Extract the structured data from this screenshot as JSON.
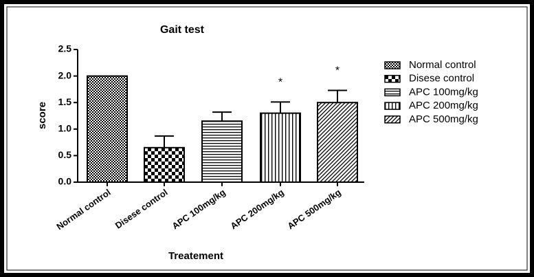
{
  "chart_data": {
    "type": "bar",
    "title": "Gait test",
    "xlabel": "Treatement",
    "ylabel": "score",
    "categories": [
      "Normal control",
      "Disese control",
      "APC 100mg/kg",
      "APC 200mg/kg",
      "APC 500mg/kg"
    ],
    "values": [
      2.0,
      0.65,
      1.15,
      1.3,
      1.5
    ],
    "errors": [
      0,
      0.22,
      0.17,
      0.21,
      0.23
    ],
    "significance_labels": [
      null,
      null,
      null,
      "*",
      "*"
    ],
    "patterns": [
      "fine-checker",
      "coarse-checker",
      "horizontal",
      "vertical",
      "diagonal"
    ],
    "color": "#000000",
    "ylim": [
      0,
      2.5
    ],
    "yticks": [
      {
        "value": 0,
        "label": "0.0"
      },
      0.5,
      {
        "value": 1,
        "label": "1.0"
      },
      1.5,
      {
        "value": 2,
        "label": "2.0"
      },
      2.5
    ],
    "legend": "right"
  }
}
